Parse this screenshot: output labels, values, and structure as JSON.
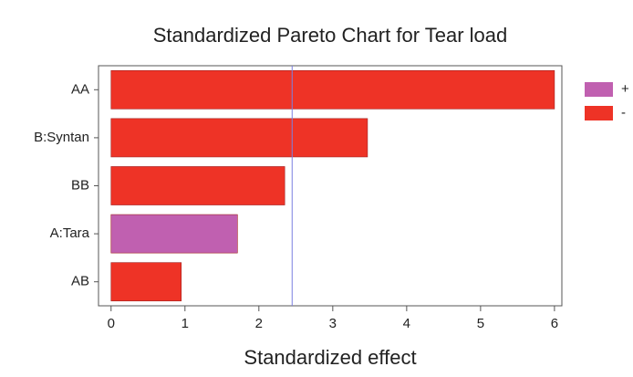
{
  "chart_data": {
    "type": "bar",
    "orientation": "horizontal",
    "title": "Standardized Pareto Chart for Tear load",
    "x_label": "Standardized effect",
    "categories": [
      "AA",
      "B:Syntan",
      "BB",
      "A:Tara",
      "AB"
    ],
    "values": [
      6.0,
      3.47,
      2.35,
      1.71,
      0.95
    ],
    "bar_colors": [
      "#ee3326",
      "#ee3326",
      "#ee3326",
      "#c060b0",
      "#ee3326"
    ],
    "legend": [
      {
        "label": "+",
        "color": "#c060b0"
      },
      {
        "label": "-",
        "color": "#ee3326"
      }
    ],
    "reference_line": 2.45,
    "reference_color": "#7b7fe0",
    "xlim": [
      -0.17,
      6.1
    ],
    "xticks": [
      0,
      1,
      2,
      3,
      4,
      5,
      6
    ]
  }
}
